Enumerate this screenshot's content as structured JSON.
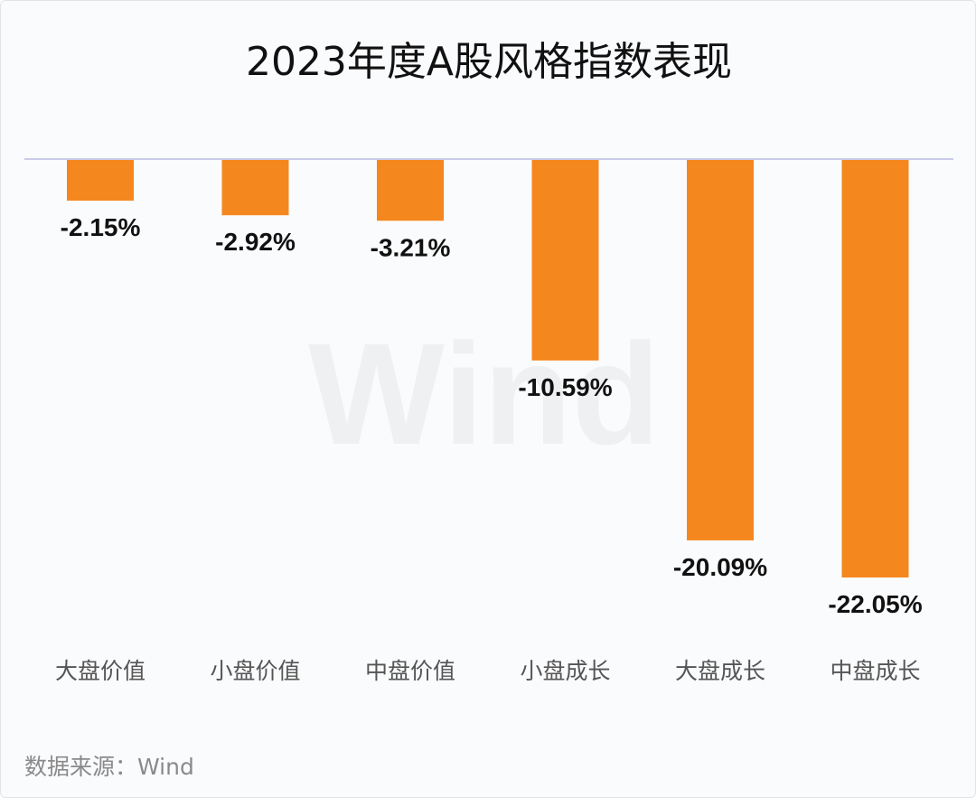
{
  "title": "2023年度A股风格指数表现",
  "source": "数据来源：Wind",
  "watermark": "Wind",
  "colors": {
    "bar": "#f5871f",
    "baseline": "#c9cbe8",
    "label": "#111111",
    "category": "#555555"
  },
  "chart_data": {
    "type": "bar",
    "title": "2023年度A股风格指数表现",
    "categories": [
      "大盘价值",
      "小盘价值",
      "中盘价值",
      "小盘成长",
      "大盘成长",
      "中盘成长"
    ],
    "values": [
      -2.15,
      -2.92,
      -3.21,
      -10.59,
      -20.09,
      -22.05
    ],
    "data_labels": [
      "-2.15%",
      "-2.92%",
      "-3.21%",
      "-10.59%",
      "-20.09%",
      "-22.05%"
    ],
    "unit": "%",
    "ylim": [
      -22.05,
      0
    ],
    "grid": false,
    "legend": "none"
  }
}
